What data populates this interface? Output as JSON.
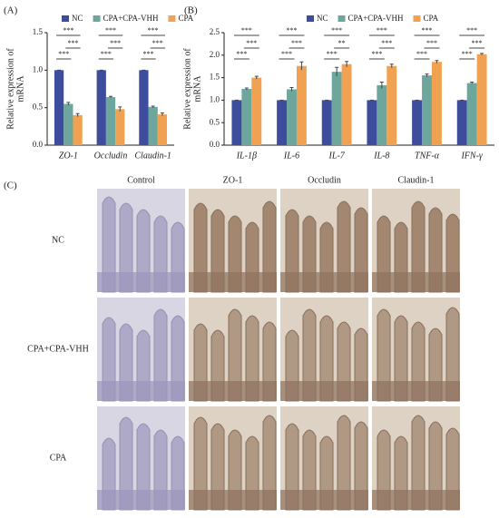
{
  "chart_data": [
    {
      "type": "bar",
      "panel": "(A)",
      "ylabel": [
        "Relative expression of",
        "mRNA"
      ],
      "categories": [
        "ZO-1",
        "Occludin",
        "Claudin-1"
      ],
      "series": [
        {
          "name": "NC",
          "color": "#3d4c9c",
          "values": [
            1,
            1,
            1
          ],
          "errors": [
            0,
            0,
            0
          ]
        },
        {
          "name": "CPA+CPA-VHH",
          "color": "#6da69c",
          "values": [
            0.55,
            0.64,
            0.51
          ],
          "errors": [
            0.02,
            0.01,
            0.01
          ]
        },
        {
          "name": "CPA",
          "color": "#f0a252",
          "values": [
            0.4,
            0.48,
            0.41
          ],
          "errors": [
            0.02,
            0.03,
            0.02
          ]
        }
      ],
      "significance": [
        [
          "***",
          "***",
          "***"
        ],
        [
          "***",
          "***",
          "***"
        ],
        [
          "***",
          "***",
          "***"
        ]
      ],
      "ylim": [
        0,
        1.5
      ],
      "yticks": [
        {
          "value": 0,
          "label": "0.0"
        },
        0.5,
        {
          "value": 1,
          "label": "1.0"
        },
        1.5
      ]
    },
    {
      "type": "bar",
      "panel": "(B)",
      "ylabel": [
        "Relative expression of",
        "mRNA"
      ],
      "categories": [
        "IL-1β",
        "IL-6",
        "IL-7",
        "IL-8",
        "TNF-α",
        "IFN-γ"
      ],
      "series": [
        {
          "name": "NC",
          "color": "#3d4c9c",
          "values": [
            1,
            1,
            1,
            1,
            1,
            1
          ],
          "errors": [
            0,
            0,
            0,
            0,
            0,
            0
          ]
        },
        {
          "name": "CPA+CPA-VHH",
          "color": "#6da69c",
          "values": [
            1.25,
            1.24,
            1.63,
            1.33,
            1.55,
            1.38
          ],
          "errors": [
            0.02,
            0.04,
            0.1,
            0.07,
            0.03,
            0.02
          ]
        },
        {
          "name": "CPA",
          "color": "#f0a252",
          "values": [
            1.5,
            1.76,
            1.8,
            1.76,
            1.85,
            2.02
          ],
          "errors": [
            0.03,
            0.09,
            0.06,
            0.04,
            0.03,
            0.02
          ]
        }
      ],
      "significance": [
        [
          "***",
          "***",
          "***"
        ],
        [
          "***",
          "***",
          "***"
        ],
        [
          "***",
          "**",
          "***"
        ],
        [
          "***",
          "***",
          "***"
        ],
        [
          "***",
          "***",
          "***"
        ],
        [
          "***",
          "***",
          "***"
        ]
      ],
      "ylim": [
        0,
        2.5
      ],
      "yticks": [
        {
          "value": 0,
          "label": "0.0"
        },
        0.5,
        {
          "value": 1,
          "label": "1.0"
        },
        1.5,
        {
          "value": 2,
          "label": "2.0"
        },
        2.5
      ]
    }
  ],
  "panel_c": {
    "label": "(C)",
    "columns": [
      "Control",
      "ZO-1",
      "Occludin",
      "Claudin-1"
    ],
    "rows": [
      "NC",
      "CPA+CPA-VHH",
      "CPA"
    ]
  }
}
